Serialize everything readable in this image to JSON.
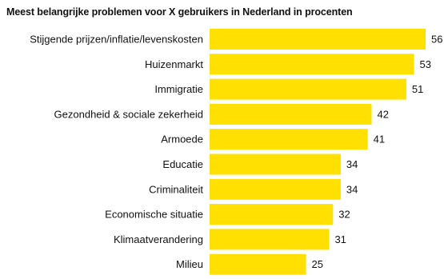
{
  "chart_data": {
    "type": "bar",
    "orientation": "horizontal",
    "title": "Meest belangrijke problemen voor X gebruikers in Nederland in procenten",
    "categories": [
      "Stijgende prijzen/inflatie/levenskosten",
      "Huizenmarkt",
      "Immigratie",
      "Gezondheid & sociale zekerheid",
      "Armoede",
      "Educatie",
      "Criminaliteit",
      "Economische situatie",
      "Klimaatverandering",
      "Milieu"
    ],
    "values": [
      56,
      53,
      51,
      42,
      41,
      34,
      34,
      32,
      31,
      25
    ],
    "bar_color": "#FFE000",
    "grid": false,
    "legend": "none"
  }
}
